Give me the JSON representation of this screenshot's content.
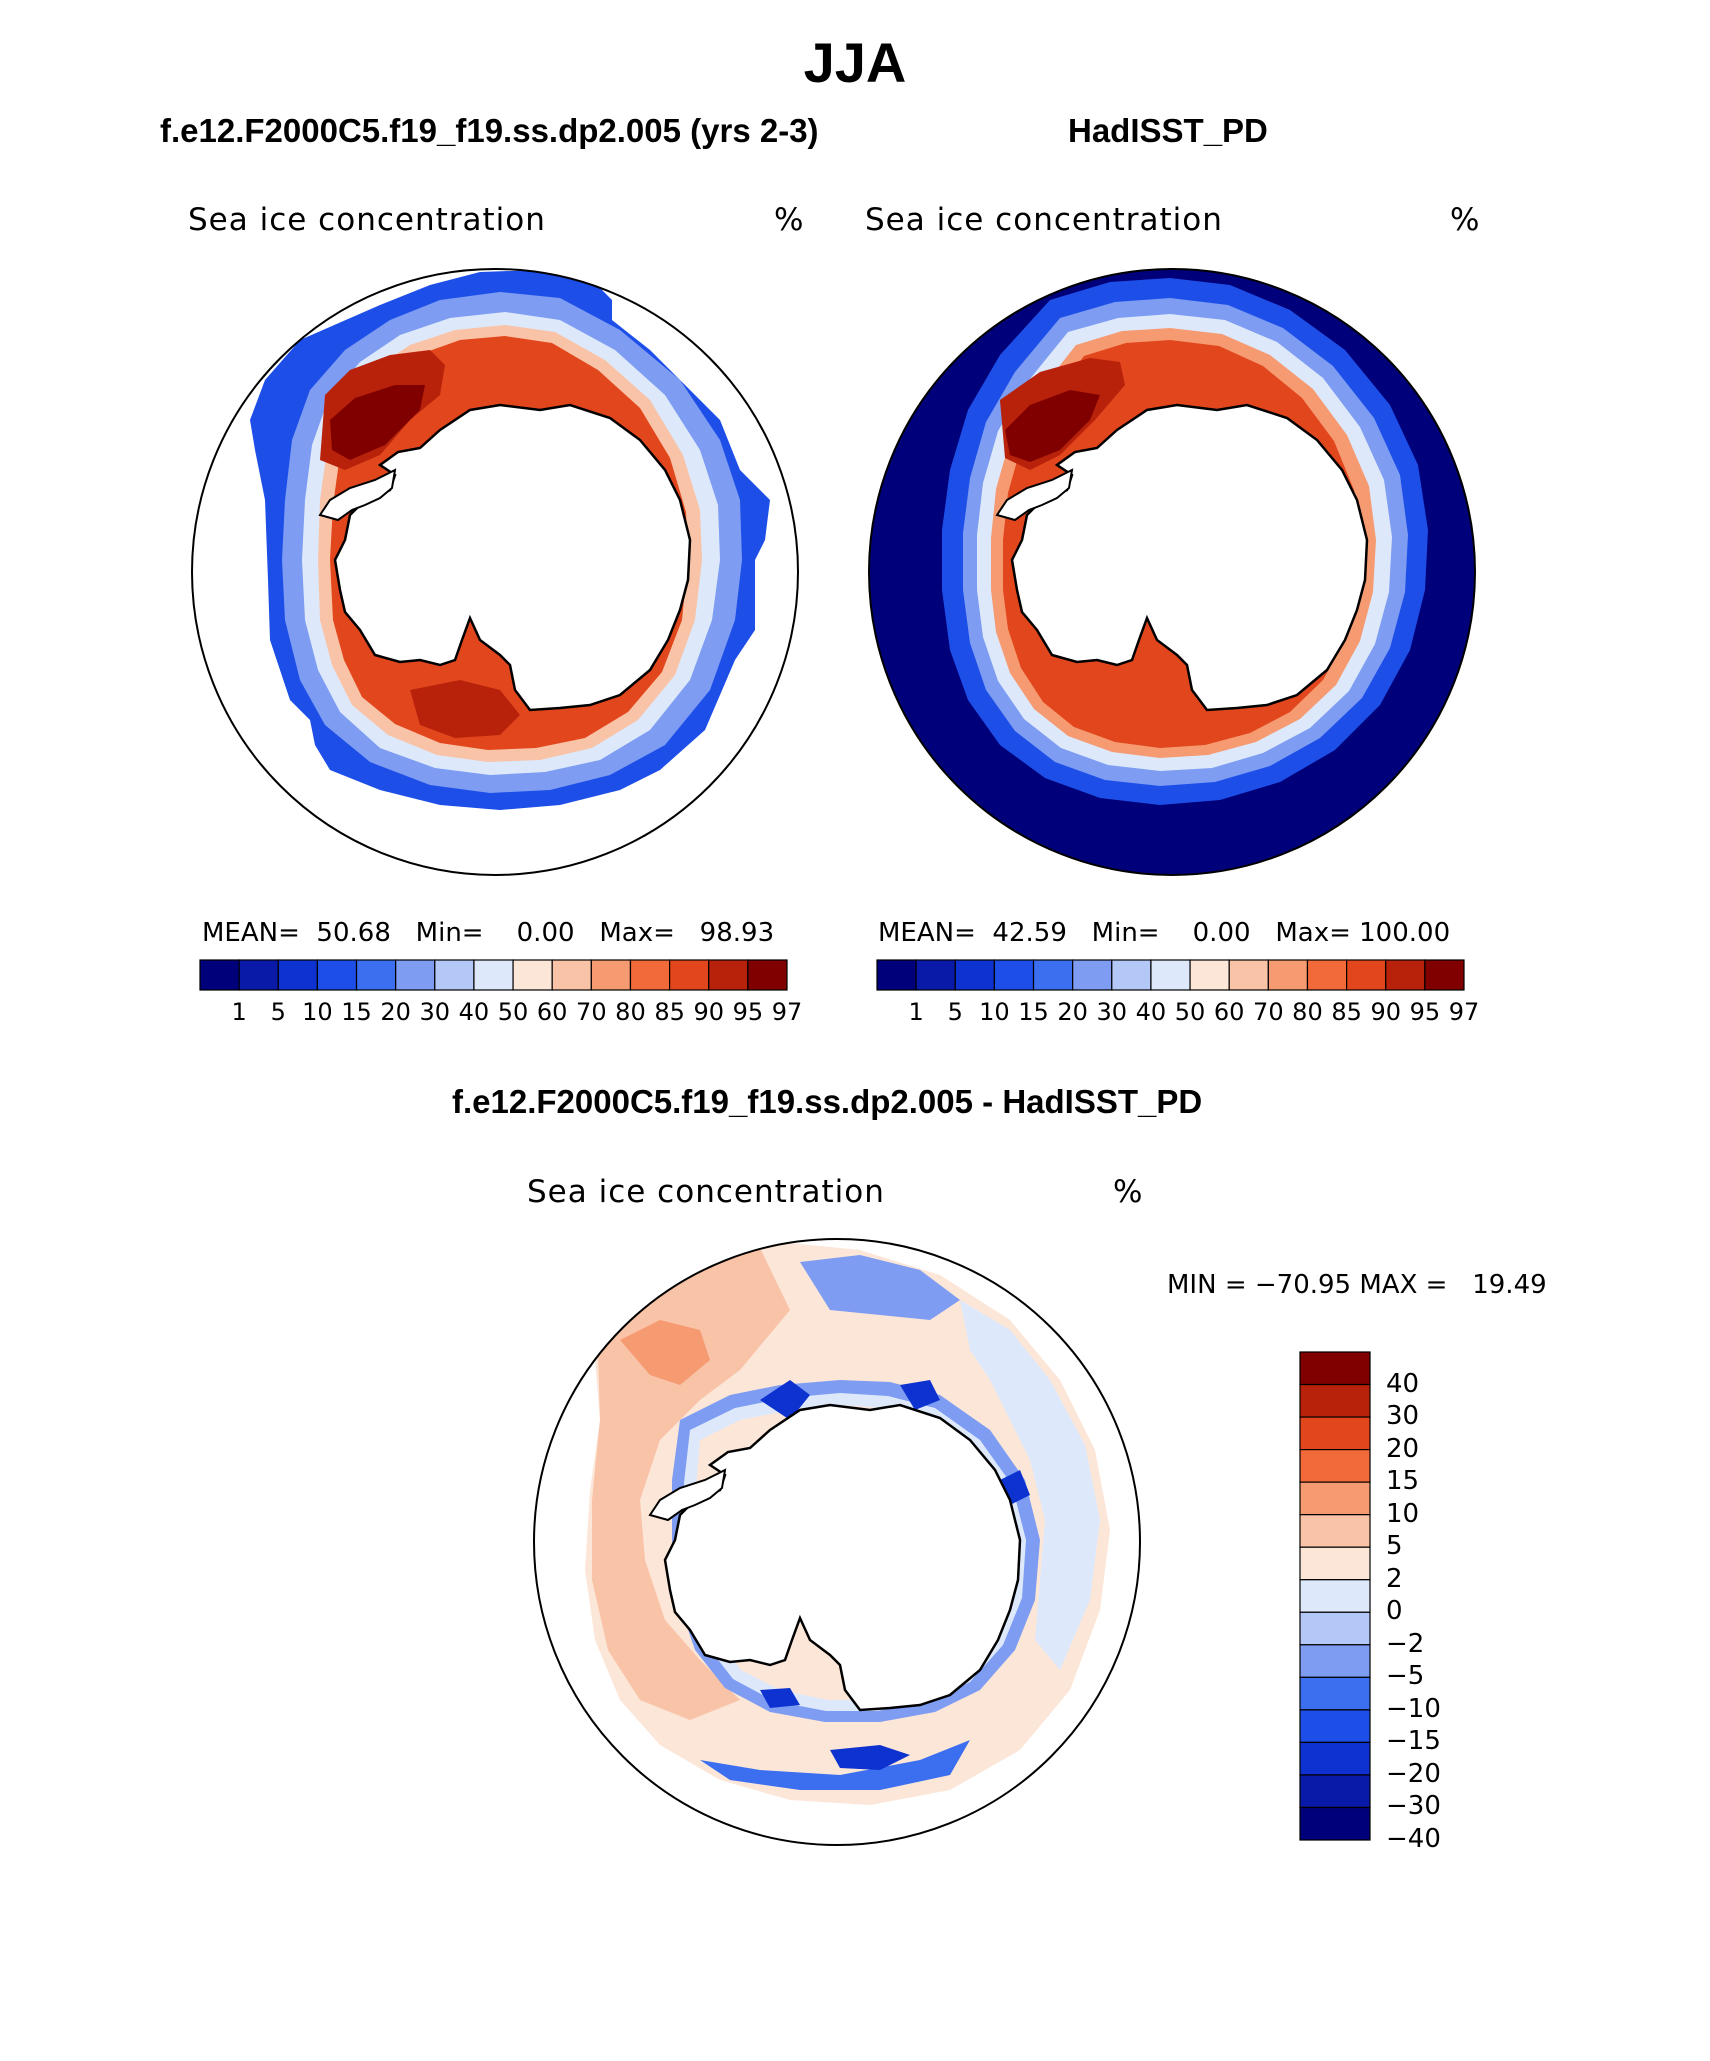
{
  "figure": {
    "season_title": "JJA",
    "panels": [
      {
        "id": "model",
        "case_title": "f.e12.F2000C5.f19_f19.ss.dp2.005 (yrs 2-3)",
        "variable_label": "Sea ice concentration",
        "units": "%",
        "mean_label": "MEAN=",
        "mean_value": "50.68",
        "min_label": "Min=",
        "min_value": "0.00",
        "max_label": "Max=",
        "max_value": "98.93"
      },
      {
        "id": "obs",
        "case_title": "HadISST_PD",
        "variable_label": "Sea ice concentration",
        "units": "%",
        "mean_label": "MEAN=",
        "mean_value": "42.59",
        "min_label": "Min=",
        "min_value": "0.00",
        "max_label": "Max=",
        "max_value": "100.00"
      }
    ],
    "difference_panel": {
      "case_title": "f.e12.F2000C5.f19_f19.ss.dp2.005 - HadISST_PD",
      "variable_label": "Sea ice concentration",
      "units": "%",
      "minmax_text": "MIN = −70.95 MAX =   19.49"
    },
    "abs_colorbar": {
      "levels": [
        "1",
        "5",
        "10",
        "15",
        "20",
        "30",
        "40",
        "50",
        "60",
        "70",
        "80",
        "85",
        "90",
        "95",
        "97"
      ],
      "colors": [
        "#00007a",
        "#0a1aa8",
        "#0d32cf",
        "#1d4fe8",
        "#3b6ff0",
        "#7d9cf2",
        "#b4c8f8",
        "#dde9fb",
        "#fce6d8",
        "#f9c3a7",
        "#f69a72",
        "#f26a3a",
        "#e2461c",
        "#b8220b",
        "#800000"
      ]
    },
    "diff_colorbar": {
      "levels": [
        "40",
        "30",
        "20",
        "15",
        "10",
        "5",
        "2",
        "0",
        "−2",
        "−5",
        "−10",
        "−15",
        "−20",
        "−30",
        "−40"
      ],
      "colors": [
        "#800000",
        "#b8220b",
        "#e2461c",
        "#f26a3a",
        "#f69a72",
        "#f9c3a7",
        "#fce6d8",
        "#dde9fb",
        "#b4c8f8",
        "#7d9cf2",
        "#3b6ff0",
        "#1d4fe8",
        "#0d32cf",
        "#0a1aa8",
        "#00007a"
      ]
    }
  }
}
